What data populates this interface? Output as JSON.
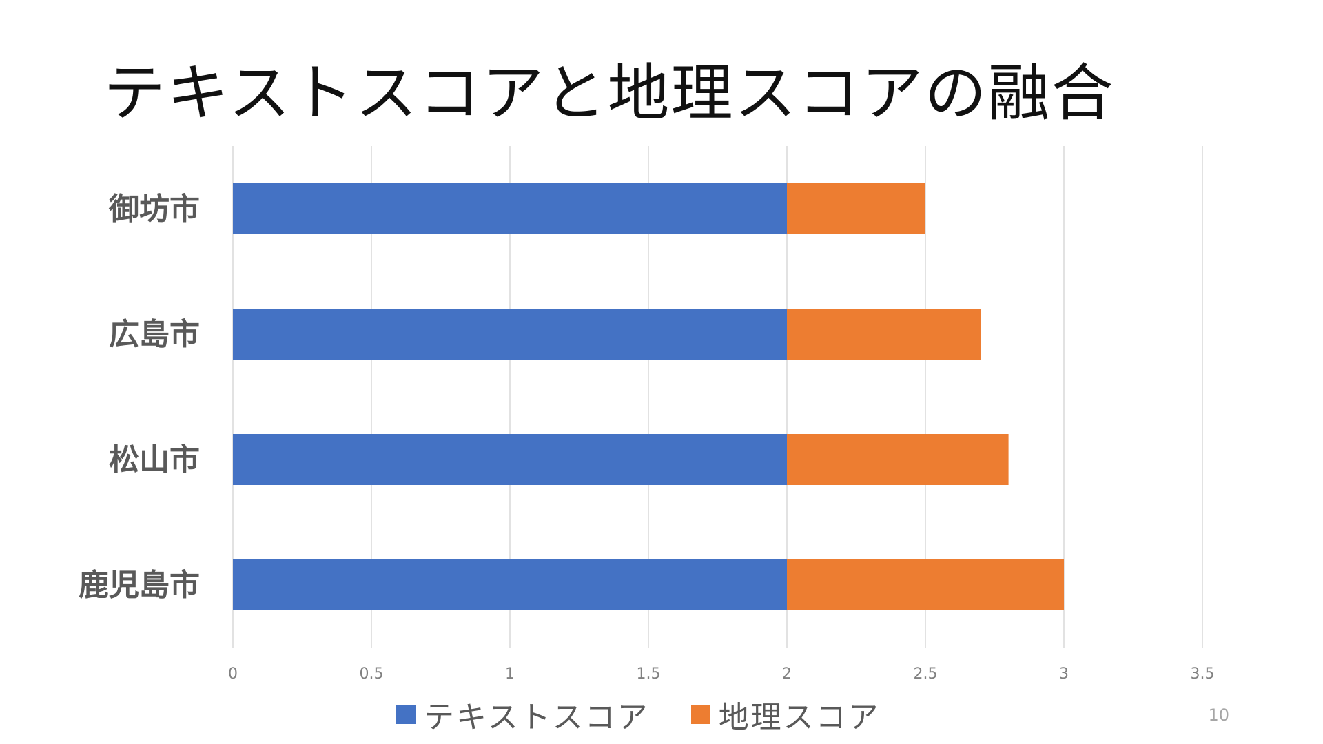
{
  "slide": {
    "title": "テキストスコアと地理スコアの融合",
    "page_number": "10"
  },
  "chart_data": {
    "type": "bar",
    "orientation": "horizontal",
    "stacked": true,
    "categories": [
      "御坊市",
      "広島市",
      "松山市",
      "鹿児島市"
    ],
    "series": [
      {
        "name": "テキストスコア",
        "color": "#4472C4",
        "values": [
          2,
          2,
          2,
          2
        ]
      },
      {
        "name": "地理スコア",
        "color": "#ED7D31",
        "values": [
          0.5,
          0.7,
          0.8,
          1.0
        ]
      }
    ],
    "xlim": [
      0,
      3.5
    ],
    "x_ticks": [
      "0",
      "0.5",
      "1",
      "1.5",
      "2",
      "2.5",
      "3",
      "3.5"
    ],
    "grid": true,
    "legend_position": "bottom"
  }
}
